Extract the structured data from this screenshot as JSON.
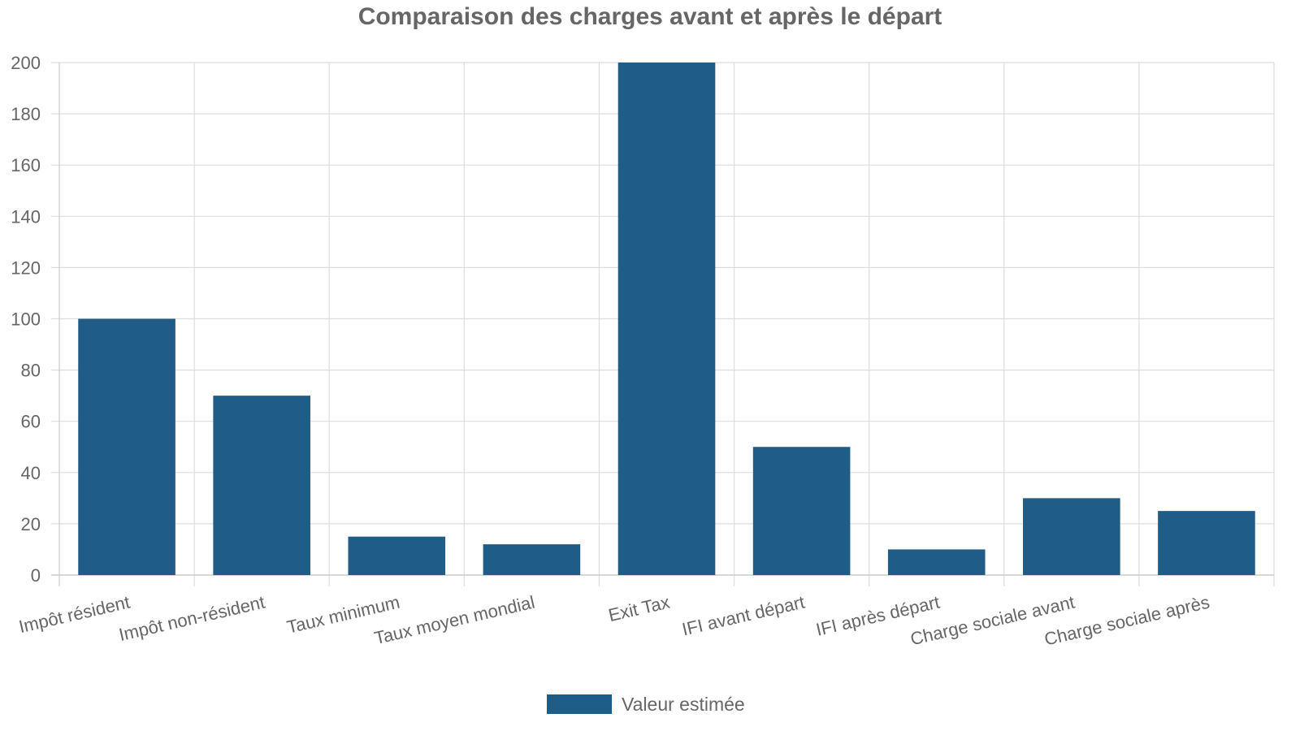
{
  "chart_data": {
    "type": "bar",
    "title": "Comparaison des charges avant et après le départ",
    "xlabel": "",
    "ylabel": "",
    "categories": [
      "Impôt résident",
      "Impôt non-résident",
      "Taux minimum",
      "Taux moyen mondial",
      "Exit Tax",
      "IFI avant départ",
      "IFI après départ",
      "Charge sociale avant",
      "Charge sociale après"
    ],
    "series": [
      {
        "name": "Valeur estimée",
        "values": [
          100,
          70,
          15,
          12,
          200,
          50,
          10,
          30,
          25
        ],
        "color": "#1f5c86"
      }
    ],
    "ylim": [
      0,
      200
    ],
    "yticks": [
      0,
      20,
      40,
      60,
      80,
      100,
      120,
      140,
      160,
      180,
      200
    ],
    "grid": true,
    "legend_position": "bottom"
  }
}
